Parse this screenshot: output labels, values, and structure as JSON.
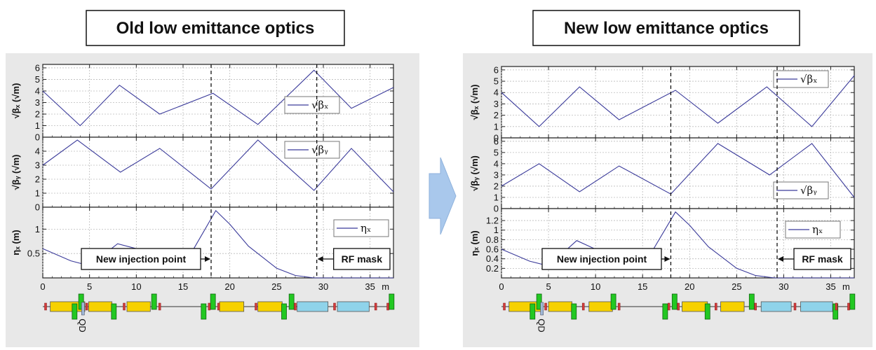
{
  "chart_data": [
    {
      "type": "line",
      "title": "Old low emittance optics",
      "x_unit": "m",
      "xlim": [
        0,
        37.5
      ],
      "xticks": [
        "0",
        "5",
        "10",
        "15",
        "20",
        "25",
        "30",
        "35"
      ],
      "x_unit_label": "m",
      "dashed_lines_x": [
        18,
        29.3
      ],
      "annotations": [
        {
          "text": "New injection point",
          "x": 18
        },
        {
          "text": "RF mask",
          "x": 29.3
        }
      ],
      "lattice_label": "QD",
      "panels": [
        {
          "ylabel": "√βₓ (√m)",
          "ylim": [
            0,
            6.3
          ],
          "yticks": [
            "0",
            "1",
            "2",
            "3",
            "4",
            "5",
            "6"
          ],
          "legend": "√βₓ",
          "series": [
            {
              "name": "√βₓ",
              "x": [
                0,
                4,
                8.2,
                12.5,
                18.2,
                23,
                29,
                33,
                37.5
              ],
              "y": [
                4.0,
                1.0,
                4.5,
                2.0,
                3.8,
                1.1,
                5.8,
                2.5,
                4.3
              ]
            }
          ]
        },
        {
          "ylabel": "√βᵧ (√m)",
          "ylim": [
            0,
            5
          ],
          "yticks": [
            "0",
            "1",
            "2",
            "3",
            "4"
          ],
          "legend": "√βᵧ",
          "series": [
            {
              "name": "√βᵧ",
              "x": [
                0,
                3.7,
                8.3,
                12.5,
                18,
                23,
                29,
                33,
                37.5
              ],
              "y": [
                3.0,
                4.8,
                2.5,
                4.2,
                1.3,
                4.8,
                1.2,
                4.2,
                1.1
              ]
            }
          ]
        },
        {
          "ylabel": "ηₓ (m)",
          "ylim": [
            0,
            1.45
          ],
          "yticks": [
            "0.5",
            "1"
          ],
          "legend": "ηₓ",
          "series": [
            {
              "name": "ηₓ",
              "x": [
                0,
                3,
                5,
                8,
                10,
                13,
                16,
                18.5,
                20,
                22,
                25,
                27,
                29,
                31,
                33,
                35,
                37.5
              ],
              "y": [
                0.6,
                0.35,
                0.25,
                0.7,
                0.6,
                0.45,
                0.55,
                1.38,
                1.1,
                0.65,
                0.2,
                0.05,
                0.0,
                0.0,
                0.0,
                0.0,
                0.0
              ]
            }
          ]
        }
      ]
    },
    {
      "type": "line",
      "title": "New low emittance optics",
      "x_unit": "m",
      "xlim": [
        0,
        37.5
      ],
      "xticks": [
        "0",
        "5",
        "10",
        "15",
        "20",
        "25",
        "30",
        "35"
      ],
      "x_unit_label": "m",
      "dashed_lines_x": [
        18,
        29.3
      ],
      "annotations": [
        {
          "text": "New injection point",
          "x": 18
        },
        {
          "text": "RF mask",
          "x": 29.3
        }
      ],
      "lattice_label": "QD",
      "panels": [
        {
          "ylabel": "√βₓ (√m)",
          "ylim": [
            0,
            6.3
          ],
          "yticks": [
            "0",
            "1",
            "2",
            "3",
            "4",
            "5",
            "6"
          ],
          "legend": "√βₓ",
          "series": [
            {
              "name": "√βₓ",
              "x": [
                0,
                4,
                8.3,
                12.5,
                18.5,
                23,
                28.2,
                33,
                37.5
              ],
              "y": [
                4.0,
                1.0,
                4.5,
                1.6,
                4.2,
                1.3,
                4.5,
                1.0,
                5.5
              ]
            }
          ]
        },
        {
          "ylabel": "√βᵧ (√m)",
          "ylim": [
            0,
            6.3
          ],
          "yticks": [
            "0",
            "1",
            "2",
            "3",
            "4",
            "5",
            "6"
          ],
          "legend": "√βᵧ",
          "series": [
            {
              "name": "√βᵧ",
              "x": [
                0,
                4,
                8.3,
                12.5,
                18,
                23,
                28.5,
                33,
                37.5
              ],
              "y": [
                2.0,
                4.0,
                1.5,
                3.8,
                1.3,
                5.8,
                3.0,
                5.8,
                1.0
              ]
            }
          ]
        },
        {
          "ylabel": "ηₓ (m)",
          "ylim": [
            0,
            1.45
          ],
          "yticks": [
            "0.2",
            "0.4",
            "0.6",
            "0.8",
            "1",
            "1.2"
          ],
          "legend": "ηₓ",
          "series": [
            {
              "name": "ηₓ",
              "x": [
                0,
                3,
                5,
                8,
                10,
                13,
                16,
                18.5,
                20,
                22,
                25,
                27,
                29,
                31,
                33,
                35,
                37.5
              ],
              "y": [
                0.6,
                0.35,
                0.25,
                0.78,
                0.6,
                0.45,
                0.55,
                1.38,
                1.1,
                0.65,
                0.2,
                0.05,
                0.0,
                0.0,
                0.0,
                0.0,
                0.0
              ]
            }
          ]
        }
      ]
    }
  ]
}
